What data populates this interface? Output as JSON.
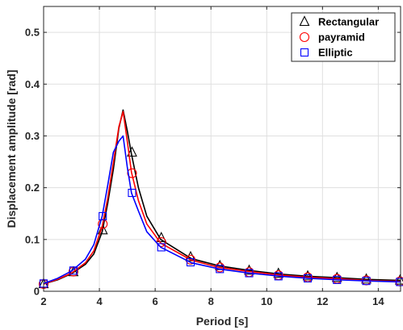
{
  "chart_data": {
    "type": "line",
    "xlabel": "Period [s]",
    "ylabel": "Displacement amplitude [rad]",
    "xlim": [
      2,
      14.8
    ],
    "ylim": [
      0,
      0.55
    ],
    "xticks": [
      2,
      4,
      6,
      8,
      10,
      12,
      14
    ],
    "yticks": [
      0,
      0.1,
      0.2,
      0.3,
      0.4,
      0.5
    ],
    "xtick_labels": [
      "2",
      "4",
      "6",
      "8",
      "10",
      "12",
      "14"
    ],
    "ytick_labels": [
      "0",
      "0.1",
      "0.2",
      "0.3",
      "0.4",
      "0.5"
    ],
    "grid": true,
    "legend_position": "top-right",
    "series": [
      {
        "name": "Rectangular",
        "color": "#000000",
        "marker": "triangle",
        "line": [
          [
            2.0,
            0.014
          ],
          [
            2.5,
            0.022
          ],
          [
            3.0,
            0.034
          ],
          [
            3.5,
            0.052
          ],
          [
            3.8,
            0.072
          ],
          [
            4.1,
            0.115
          ],
          [
            4.3,
            0.17
          ],
          [
            4.5,
            0.235
          ],
          [
            4.7,
            0.315
          ],
          [
            4.85,
            0.35
          ],
          [
            5.0,
            0.31
          ],
          [
            5.15,
            0.265
          ],
          [
            5.4,
            0.2
          ],
          [
            5.7,
            0.145
          ],
          [
            6.2,
            0.1
          ],
          [
            7.3,
            0.063
          ],
          [
            8.3,
            0.049
          ],
          [
            9.4,
            0.04
          ],
          [
            10.5,
            0.033
          ],
          [
            11.5,
            0.029
          ],
          [
            12.6,
            0.026
          ],
          [
            13.6,
            0.023
          ],
          [
            14.8,
            0.021
          ]
        ],
        "markers": [
          [
            2.0,
            0.014
          ],
          [
            3.07,
            0.037
          ],
          [
            4.12,
            0.118
          ],
          [
            5.17,
            0.268
          ],
          [
            6.22,
            0.103
          ],
          [
            7.27,
            0.066
          ],
          [
            8.32,
            0.049
          ],
          [
            9.37,
            0.04
          ],
          [
            10.42,
            0.034
          ],
          [
            11.47,
            0.029
          ],
          [
            12.52,
            0.026
          ],
          [
            13.57,
            0.023
          ],
          [
            14.78,
            0.021
          ]
        ]
      },
      {
        "name": "payramid",
        "color": "#ff0000",
        "marker": "circle",
        "line": [
          [
            2.0,
            0.014
          ],
          [
            2.5,
            0.023
          ],
          [
            3.0,
            0.035
          ],
          [
            3.5,
            0.055
          ],
          [
            3.8,
            0.078
          ],
          [
            4.1,
            0.125
          ],
          [
            4.3,
            0.18
          ],
          [
            4.5,
            0.248
          ],
          [
            4.7,
            0.318
          ],
          [
            4.85,
            0.347
          ],
          [
            5.0,
            0.29
          ],
          [
            5.15,
            0.23
          ],
          [
            5.4,
            0.175
          ],
          [
            5.7,
            0.13
          ],
          [
            6.2,
            0.093
          ],
          [
            7.3,
            0.06
          ],
          [
            8.3,
            0.046
          ],
          [
            9.4,
            0.038
          ],
          [
            10.5,
            0.031
          ],
          [
            11.5,
            0.027
          ],
          [
            12.6,
            0.024
          ],
          [
            13.6,
            0.021
          ],
          [
            14.8,
            0.019
          ]
        ],
        "markers": [
          [
            2.0,
            0.014
          ],
          [
            3.07,
            0.038
          ],
          [
            4.12,
            0.13
          ],
          [
            5.17,
            0.228
          ],
          [
            6.22,
            0.095
          ],
          [
            7.27,
            0.061
          ],
          [
            8.32,
            0.046
          ],
          [
            9.37,
            0.037
          ],
          [
            10.42,
            0.031
          ],
          [
            11.47,
            0.027
          ],
          [
            12.52,
            0.024
          ],
          [
            13.57,
            0.021
          ],
          [
            14.78,
            0.019
          ]
        ]
      },
      {
        "name": "Elliptic",
        "color": "#0000ff",
        "marker": "square",
        "line": [
          [
            2.0,
            0.015
          ],
          [
            2.5,
            0.025
          ],
          [
            3.0,
            0.039
          ],
          [
            3.5,
            0.062
          ],
          [
            3.8,
            0.09
          ],
          [
            4.1,
            0.145
          ],
          [
            4.3,
            0.205
          ],
          [
            4.5,
            0.268
          ],
          [
            4.7,
            0.29
          ],
          [
            4.85,
            0.3
          ],
          [
            5.0,
            0.24
          ],
          [
            5.15,
            0.19
          ],
          [
            5.4,
            0.155
          ],
          [
            5.7,
            0.115
          ],
          [
            6.2,
            0.085
          ],
          [
            7.3,
            0.055
          ],
          [
            8.3,
            0.043
          ],
          [
            9.4,
            0.035
          ],
          [
            10.5,
            0.029
          ],
          [
            11.5,
            0.025
          ],
          [
            12.6,
            0.022
          ],
          [
            13.6,
            0.02
          ],
          [
            14.8,
            0.018
          ]
        ],
        "markers": [
          [
            2.0,
            0.015
          ],
          [
            3.07,
            0.04
          ],
          [
            4.12,
            0.145
          ],
          [
            5.17,
            0.19
          ],
          [
            6.22,
            0.085
          ],
          [
            7.27,
            0.056
          ],
          [
            8.32,
            0.043
          ],
          [
            9.37,
            0.035
          ],
          [
            10.42,
            0.029
          ],
          [
            11.47,
            0.025
          ],
          [
            12.52,
            0.022
          ],
          [
            13.57,
            0.02
          ],
          [
            14.78,
            0.018
          ]
        ]
      }
    ]
  }
}
